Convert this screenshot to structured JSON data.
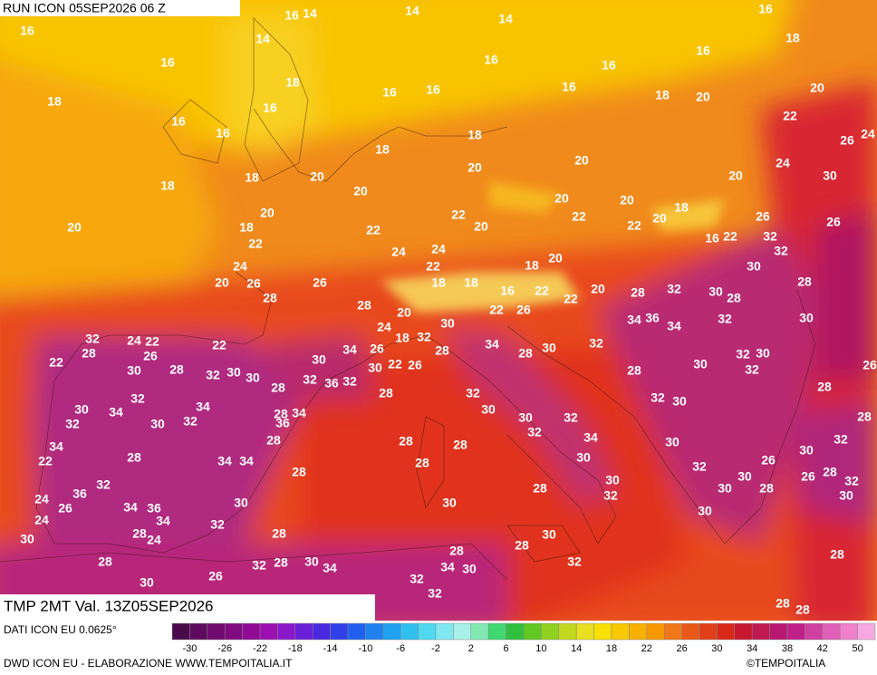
{
  "header": {
    "run": "RUN ICON 05SEP2026 06 Z",
    "field": "TMP 2MT Val. 13Z05SEP2026"
  },
  "footer": {
    "source": "DATI ICON EU 0.0625°",
    "credit": "DWD ICON EU - ELABORAZIONE WWW.TEMPOITALIA.IT",
    "copyright": "©TEMPOITALIA"
  },
  "map": {
    "labels": [
      16,
      18,
      16,
      16,
      16,
      16,
      18,
      16,
      14,
      14,
      14,
      14,
      18,
      20,
      18,
      20,
      20,
      18,
      16,
      16,
      16,
      18,
      20,
      16,
      16,
      16,
      16,
      18,
      18,
      20,
      20,
      22,
      26,
      24,
      20,
      20,
      24,
      30,
      20,
      20,
      18,
      22,
      22,
      20,
      22,
      22,
      20,
      16,
      22,
      26,
      26,
      18,
      20,
      22,
      24,
      20,
      26,
      28,
      26,
      24,
      24,
      22,
      18,
      18,
      16,
      18,
      20,
      22,
      22,
      20,
      28,
      32,
      30,
      28,
      30,
      28,
      30,
      32,
      32,
      28,
      20,
      30,
      22,
      26,
      24,
      18,
      32,
      34,
      26,
      30,
      28,
      34,
      32,
      28,
      24,
      22,
      26,
      22,
      22,
      30,
      28,
      32,
      30,
      30,
      28,
      32,
      36,
      32,
      30,
      22,
      26,
      28,
      32,
      30,
      28,
      30,
      32,
      34,
      36,
      34,
      32,
      32,
      30,
      32,
      30,
      28,
      32,
      30,
      26,
      28,
      28,
      32,
      30,
      34,
      34,
      32,
      30,
      32,
      28,
      34,
      36,
      28,
      34,
      28,
      34,
      34,
      22,
      32,
      36,
      26,
      24,
      24,
      34,
      36,
      34,
      28,
      32,
      30,
      28,
      28,
      28,
      28,
      30,
      28,
      30,
      32,
      32,
      34,
      30,
      30,
      32,
      30,
      32,
      30,
      26,
      30,
      30,
      28,
      30,
      32,
      28,
      26,
      32,
      30,
      30,
      28,
      24,
      28,
      30,
      28,
      32,
      28,
      34,
      30,
      32,
      32,
      32,
      28,
      30,
      34,
      26,
      30,
      28,
      28,
      28
    ]
  },
  "colorbar": {
    "colors": [
      "#4a0a4a",
      "#5e0a5e",
      "#700a70",
      "#800a80",
      "#900a96",
      "#9a10b0",
      "#8a18c8",
      "#6a20d8",
      "#4a28e0",
      "#3040e8",
      "#2060f0",
      "#2080f0",
      "#20a0f0",
      "#30c0f0",
      "#50d8f0",
      "#80e8f0",
      "#a8f0e8",
      "#80e8b0",
      "#40d870",
      "#30c040",
      "#60c820",
      "#90d020",
      "#c0d820",
      "#e8e020",
      "#f8e000",
      "#f8c800",
      "#f8b000",
      "#f89800",
      "#f07818",
      "#e85818",
      "#e04018",
      "#d82818",
      "#c81830",
      "#c01850",
      "#b81870",
      "#c02088",
      "#d040a0",
      "#e060b8",
      "#f080cc",
      "#f8a8e0"
    ],
    "ticks": [
      -30,
      -26,
      -22,
      -18,
      -14,
      -10,
      -6,
      -2,
      2,
      6,
      10,
      14,
      18,
      22,
      26,
      30,
      34,
      38,
      42,
      50
    ]
  }
}
